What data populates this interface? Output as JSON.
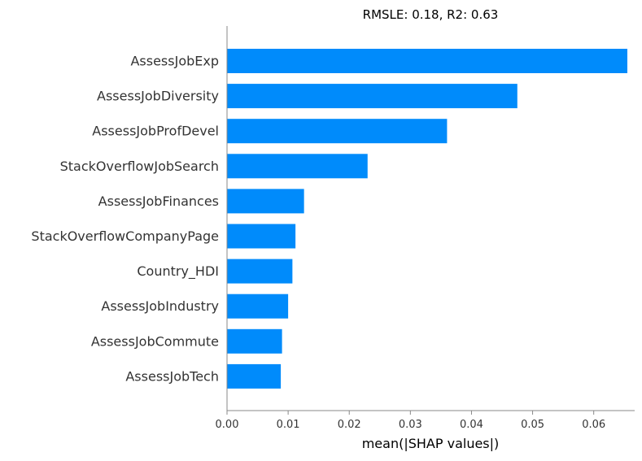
{
  "chart_data": {
    "type": "bar",
    "orientation": "horizontal",
    "title": "RMSLE: 0.18, R2: 0.63",
    "xlabel": "mean(|SHAP values|)",
    "ylabel": "",
    "categories": [
      "AssessJobExp",
      "AssessJobDiversity",
      "AssessJobProfDevel",
      "StackOverflowJobSearch",
      "AssessJobFinances",
      "StackOverflowCompanyPage",
      "Country_HDI",
      "AssessJobIndustry",
      "AssessJobCommute",
      "AssessJobTech"
    ],
    "values": [
      0.0655,
      0.0475,
      0.036,
      0.023,
      0.0126,
      0.0112,
      0.0107,
      0.01,
      0.009,
      0.0088
    ],
    "xlim": [
      0,
      0.0667
    ],
    "xticks": [
      0.0,
      0.01,
      0.02,
      0.03,
      0.04,
      0.05,
      0.06
    ],
    "xtick_labels": [
      "0.00",
      "0.01",
      "0.02",
      "0.03",
      "0.04",
      "0.05",
      "0.06"
    ],
    "grid": false,
    "bar_color": "#008bfb",
    "axis_color": "#888888",
    "text_color": "#333333"
  }
}
